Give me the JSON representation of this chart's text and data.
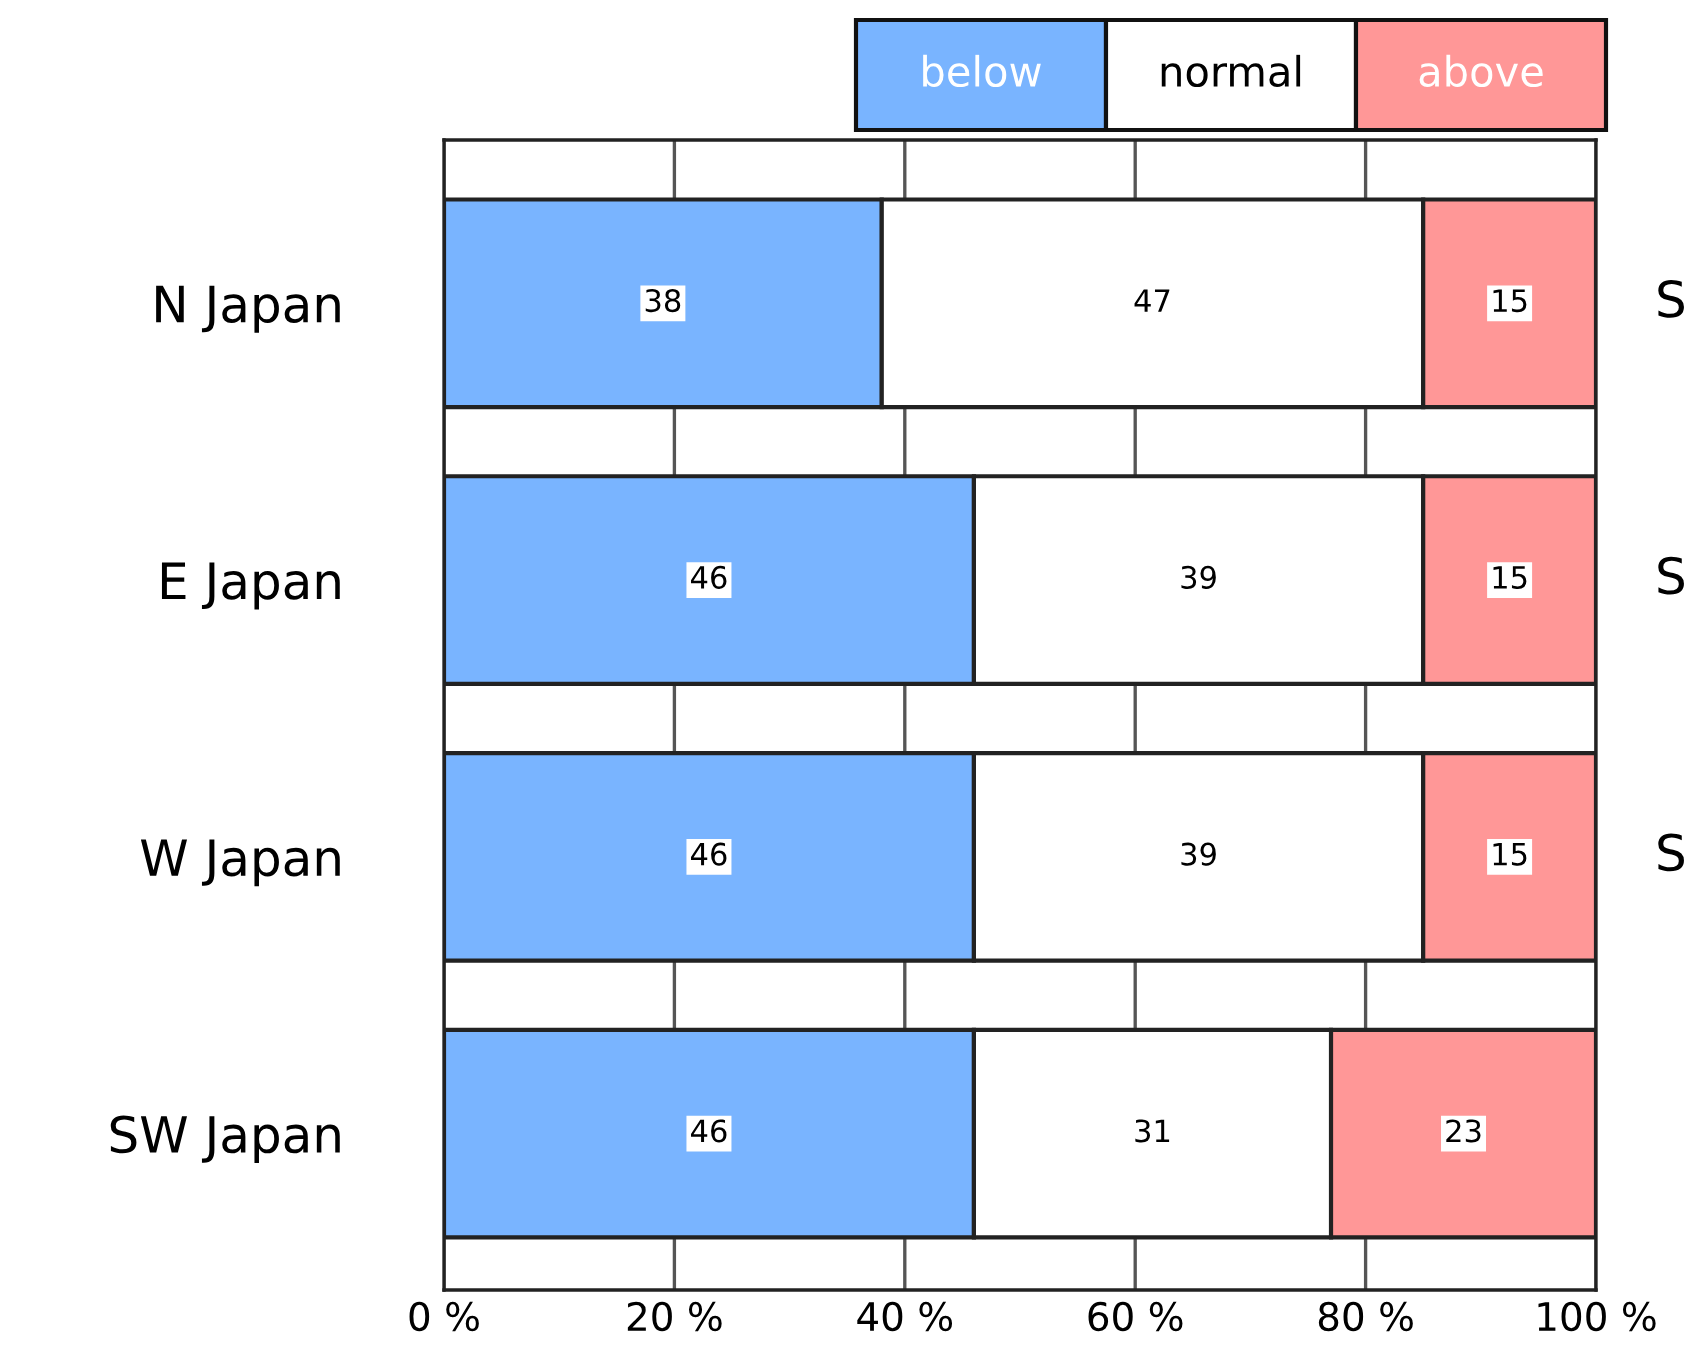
{
  "chart_data": {
    "type": "bar",
    "orientation": "horizontal",
    "stacked": true,
    "categories": [
      "N Japan",
      "E Japan",
      "W Japan",
      "SW Japan"
    ],
    "series": [
      {
        "name": "below",
        "color": "#79b4ff",
        "values": [
          38,
          46,
          46,
          46
        ]
      },
      {
        "name": "normal",
        "color": "#ffffff",
        "values": [
          47,
          39,
          39,
          31
        ]
      },
      {
        "name": "above",
        "color": "#ff9797",
        "values": [
          15,
          15,
          15,
          23
        ]
      }
    ],
    "xlim": [
      0,
      100
    ],
    "xticks": [
      {
        "value": 0,
        "label": "0 %"
      },
      {
        "value": 20,
        "label": "20 %"
      },
      {
        "value": 40,
        "label": "40 %"
      },
      {
        "value": 60,
        "label": "60 %"
      },
      {
        "value": 80,
        "label": "80 %"
      },
      {
        "value": 100,
        "label": "100 %"
      }
    ],
    "grid": "x",
    "legend": "top right",
    "data_labels": true,
    "annotations": [
      "S",
      "S",
      "S"
    ]
  }
}
